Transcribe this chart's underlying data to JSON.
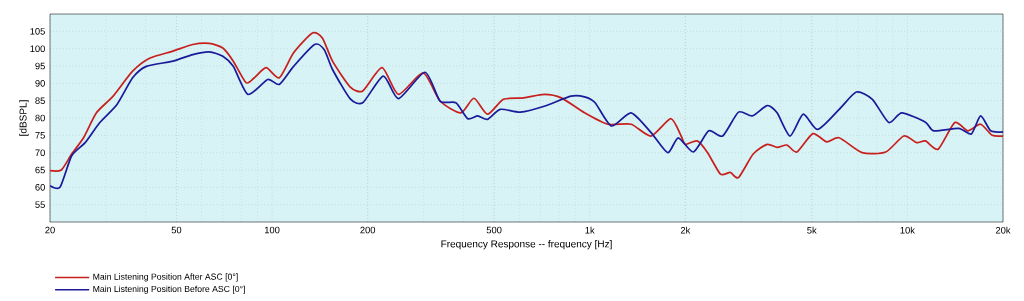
{
  "chart_data": {
    "type": "line",
    "xlabel": "Frequency Response -- frequency [Hz]",
    "ylabel": "[dBSPL]",
    "log": "x",
    "grid": true,
    "legend": "bottom",
    "line_style": "solid",
    "marker": "none",
    "xlim": [
      20,
      20000
    ],
    "ylim": [
      50,
      110
    ],
    "xticks": [
      20,
      50,
      100,
      200,
      500,
      {
        "value": 1000,
        "label": "1k"
      },
      {
        "value": 2000,
        "label": "2k"
      },
      {
        "value": 5000,
        "label": "5k"
      },
      {
        "value": 10000,
        "label": "10k"
      },
      {
        "value": 20000,
        "label": "20k"
      }
    ],
    "yticks": [
      55,
      60,
      65,
      70,
      75,
      80,
      85,
      90,
      95,
      100,
      105
    ],
    "series": [
      {
        "name": "Main Listening Position After ASC [0°]",
        "color": "#c8201e",
        "x": [
          20,
          21.7,
          23.4,
          25.5,
          28,
          31.6,
          36.4,
          41.3,
          48.8,
          56.3,
          63.4,
          70,
          75.5,
          82.8,
          87.9,
          95.8,
          105.4,
          116.9,
          134,
          144,
          155,
          176,
          193,
          222,
          250,
          299,
          338,
          393,
          432,
          477,
          535,
          620,
          719,
          814,
          963,
          1140,
          1350,
          1560,
          1800,
          1940,
          2000,
          2180,
          2350,
          2580,
          2770,
          2940,
          3270,
          3620,
          3890,
          4180,
          4490,
          5040,
          5570,
          6100,
          7200,
          8550,
          9740,
          10700,
          11400,
          12500,
          14100,
          15500,
          17000,
          18500,
          20000
        ],
        "values": [
          64.8,
          65,
          69.6,
          74.3,
          81.5,
          86.3,
          93.5,
          97.3,
          99.3,
          101.2,
          101.5,
          100.2,
          96.4,
          90.2,
          91.6,
          94.5,
          91.6,
          98.8,
          104.5,
          103.1,
          96.4,
          89,
          87.8,
          94.5,
          86.8,
          93,
          84.9,
          81.5,
          85.7,
          81.1,
          85.4,
          85.8,
          86.8,
          85.8,
          81.5,
          78.2,
          78.2,
          74.8,
          79.8,
          74.8,
          72.4,
          73.4,
          70,
          63.8,
          64.3,
          62.8,
          69.6,
          72.4,
          71.5,
          72.2,
          70.2,
          75.5,
          73.1,
          74.3,
          70,
          70.2,
          74.8,
          72.9,
          73.4,
          71,
          78.7,
          76.3,
          78.2,
          75,
          74.8
        ]
      },
      {
        "name": "Main Listening Position Before ASC [0°]",
        "color": "#1a1a9a",
        "x": [
          20,
          21.5,
          23.4,
          25.8,
          28.7,
          32.5,
          36.4,
          40.2,
          48.8,
          56.3,
          63.4,
          70,
          75.5,
          84,
          96.9,
          105.4,
          116.9,
          136,
          146,
          155,
          176,
          193,
          224,
          250,
          303,
          338,
          379,
          413,
          444,
          477,
          523,
          605,
          719,
          873,
          963,
          1040,
          1170,
          1350,
          1560,
          1760,
          1900,
          2120,
          2370,
          2620,
          2940,
          3250,
          3620,
          3890,
          4270,
          4700,
          5220,
          6100,
          6910,
          7760,
          8740,
          9600,
          11400,
          12100,
          14500,
          15900,
          17000,
          18300,
          20000
        ],
        "values": [
          60.5,
          60,
          69.1,
          72.9,
          78.7,
          83.9,
          91.6,
          94.9,
          96.4,
          98.3,
          99.1,
          97.8,
          94.9,
          86.8,
          91.1,
          89.7,
          94.9,
          101.2,
          99.7,
          94,
          85.6,
          84.4,
          92.1,
          85.6,
          93.2,
          84.9,
          84.4,
          79.8,
          80.6,
          79.6,
          82.5,
          81.7,
          83.4,
          86.3,
          86.1,
          84.4,
          77.7,
          81.5,
          75.8,
          70,
          74.3,
          70.2,
          76.3,
          74.8,
          81.7,
          80.6,
          83.6,
          81.5,
          74.8,
          81.1,
          76.7,
          82.5,
          87.5,
          85.4,
          78.7,
          81.5,
          78.8,
          76.3,
          77,
          75.4,
          80.6,
          76.3,
          76
        ]
      }
    ]
  }
}
